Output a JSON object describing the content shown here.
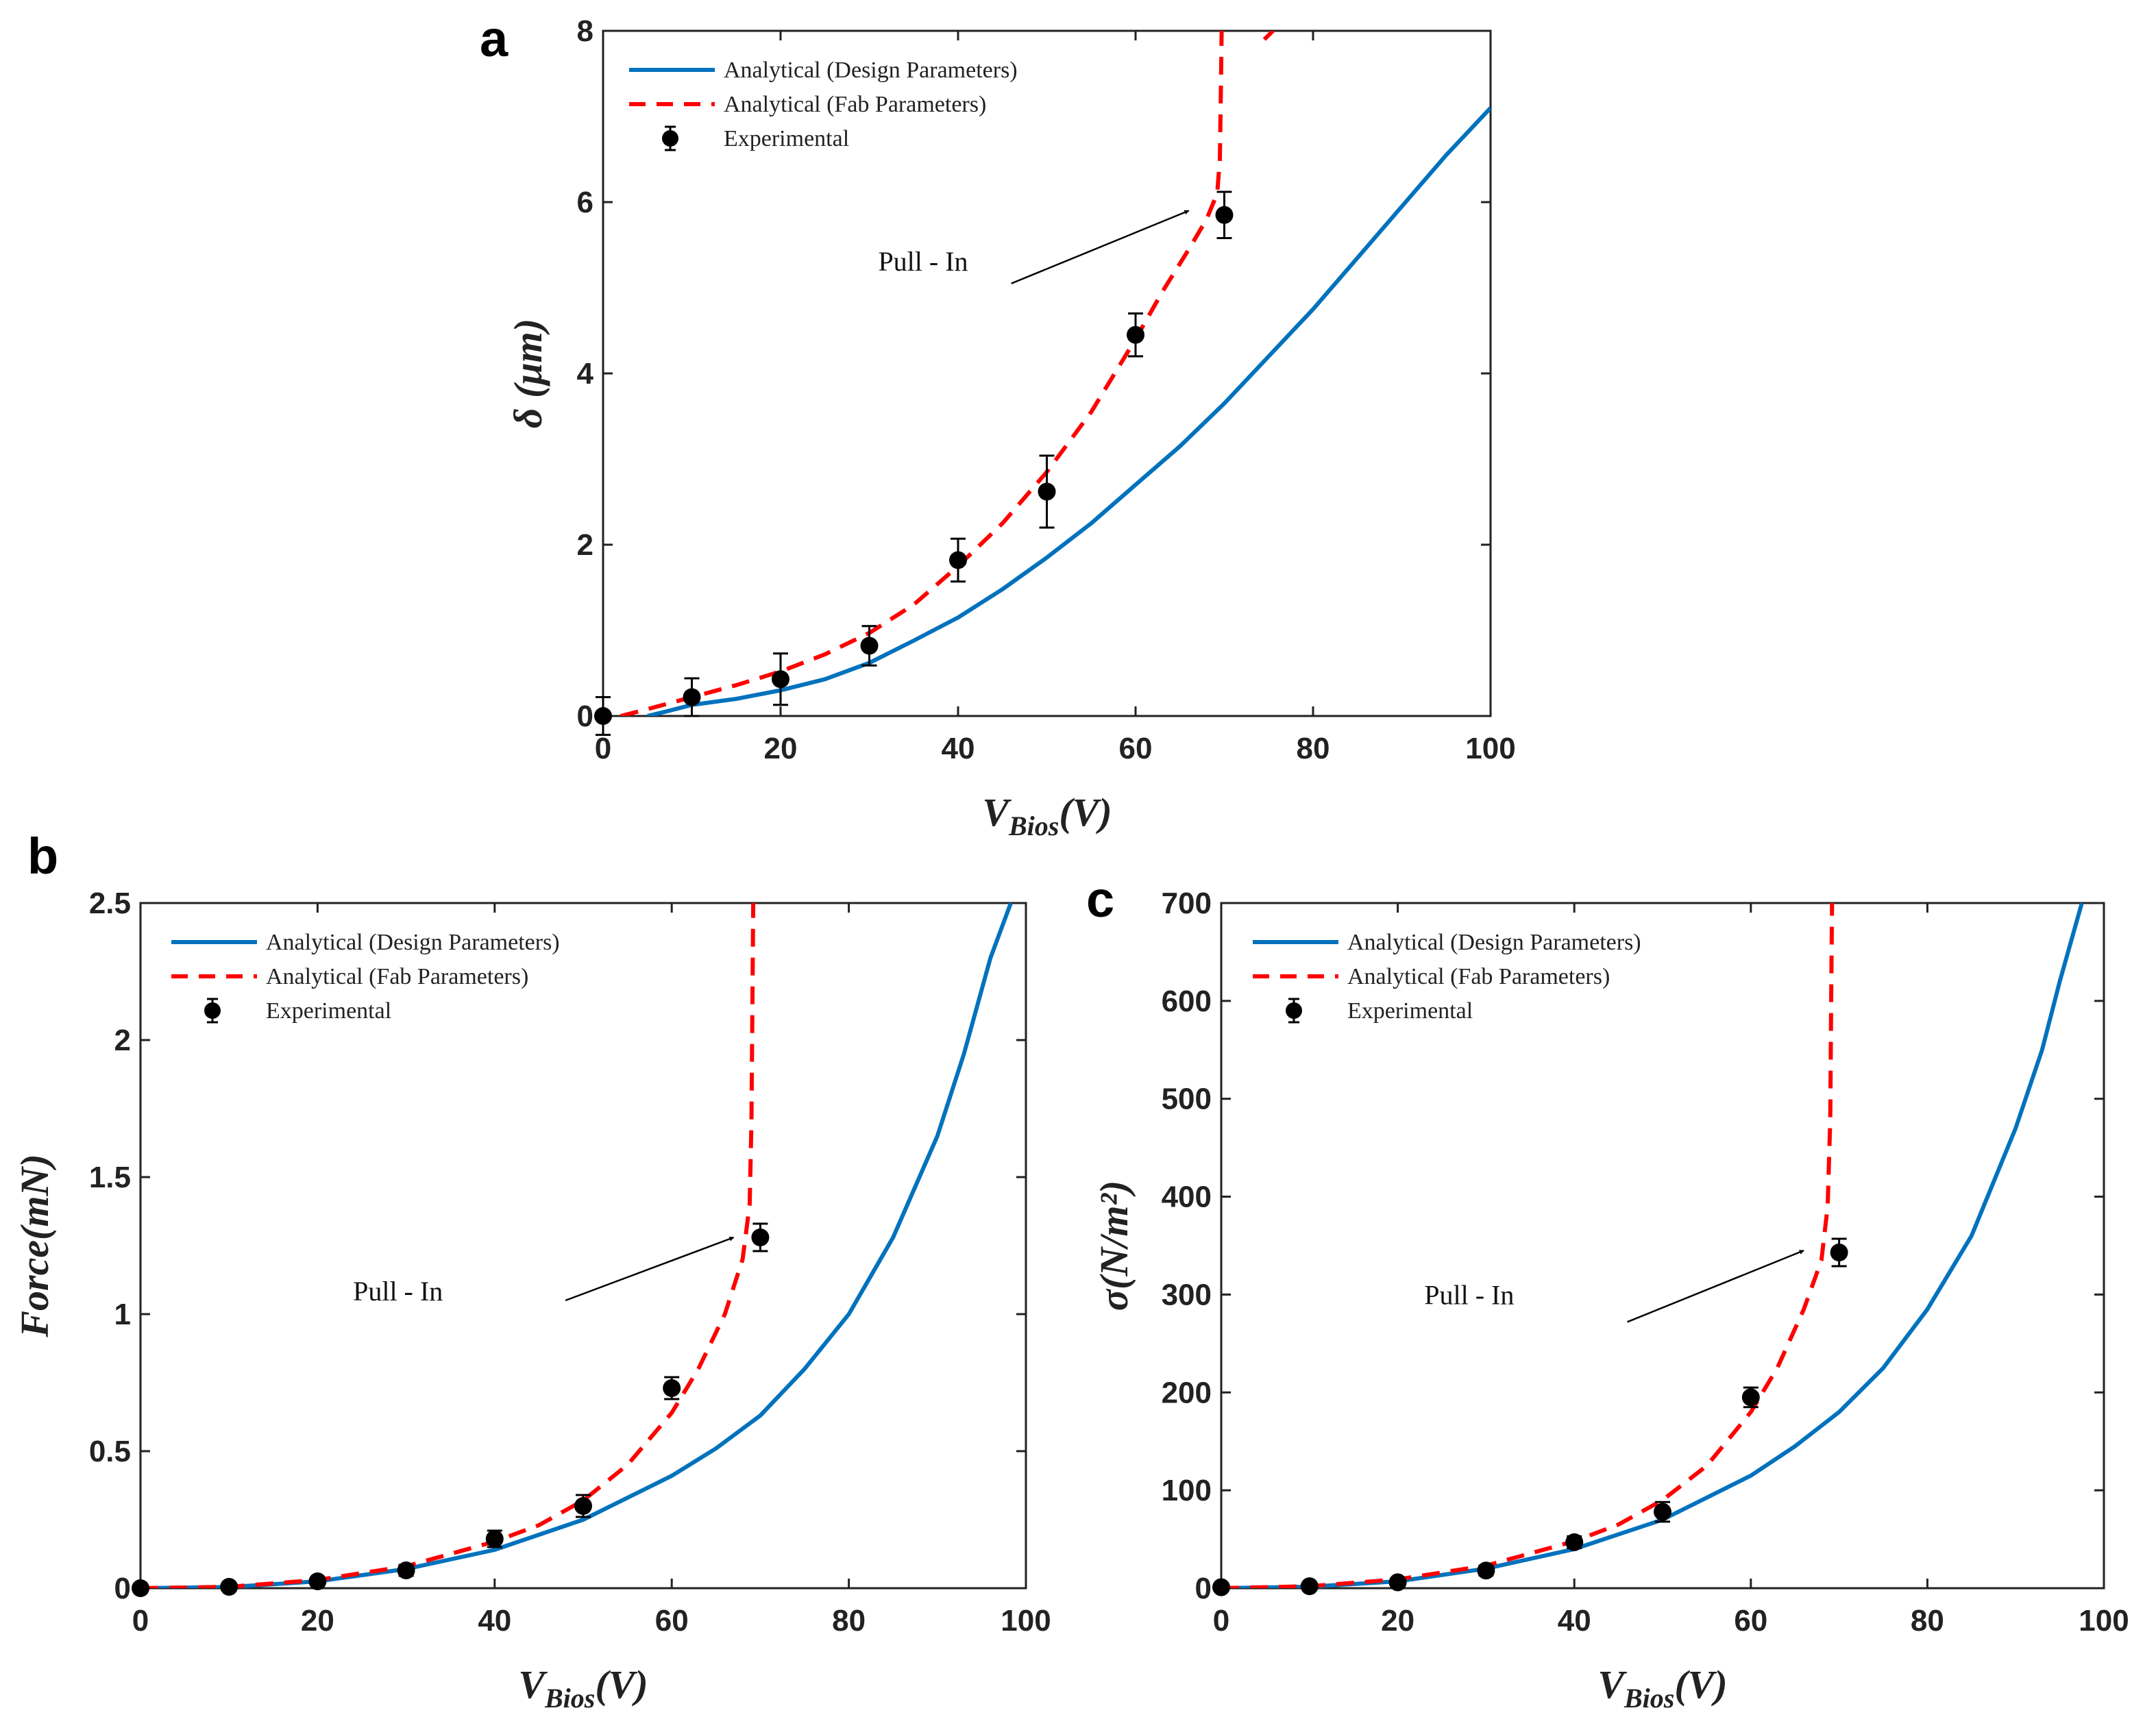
{
  "chart_data": [
    {
      "id": "a",
      "type": "line",
      "panel_letter": "a",
      "title": "",
      "xlabel": "V_Bios(V)",
      "xlabel_main": "V",
      "xlabel_sub": "Bios",
      "xlabel_tail": "(V)",
      "ylabel": "δ (μm)",
      "xlim": [
        0,
        100
      ],
      "ylim": [
        0,
        8
      ],
      "xticks": [
        0,
        20,
        40,
        60,
        80,
        100
      ],
      "xtick_labels": [
        "0",
        "20",
        "40",
        "60",
        "80",
        "100"
      ],
      "yticks": [
        0,
        2,
        4,
        6,
        8
      ],
      "ytick_labels": [
        "0",
        "2",
        "4",
        "6",
        "8"
      ],
      "grid": false,
      "legend_position": "top-left",
      "annotation": {
        "text": "Pull - In",
        "text_at": [
          31,
          5.2
        ],
        "arrow_from": [
          46,
          5.05
        ],
        "arrow_to": [
          66,
          5.9
        ]
      },
      "series": [
        {
          "name": "Analytical (Design Parameters)",
          "style": "solid",
          "color": "#0072bd",
          "x": [
            5,
            7,
            10,
            15,
            20,
            25,
            30,
            35,
            40,
            45,
            50,
            55,
            60,
            65,
            70,
            75,
            80,
            85,
            90,
            95,
            100
          ],
          "y": [
            0,
            0.05,
            0.13,
            0.2,
            0.3,
            0.43,
            0.62,
            0.88,
            1.15,
            1.48,
            1.85,
            2.25,
            2.7,
            3.15,
            3.65,
            4.2,
            4.75,
            5.35,
            5.95,
            6.55,
            7.1
          ]
        },
        {
          "name": "Analytical (Fab Parameters)",
          "style": "dashed",
          "color": "#ff0000",
          "x": [
            2,
            5,
            10,
            15,
            20,
            25,
            30,
            35,
            40,
            45,
            50,
            55,
            60,
            63,
            66,
            68,
            69.2,
            69.5,
            69.6,
            69.7
          ],
          "y": [
            0,
            0.08,
            0.22,
            0.36,
            0.52,
            0.72,
            0.97,
            1.3,
            1.75,
            2.25,
            2.85,
            3.55,
            4.4,
            4.95,
            5.45,
            5.8,
            6.1,
            6.5,
            7.2,
            8.0
          ]
        },
        {
          "name": "Analytical (Fab Parameters)",
          "style": "dashed",
          "color": "#ff0000",
          "legend": false,
          "x": [
            74.5,
            75.5
          ],
          "y": [
            7.9,
            8.0
          ]
        },
        {
          "name": "Experimental",
          "style": "marker",
          "color": "#000000",
          "x": [
            0,
            10,
            20,
            30,
            40,
            50,
            60,
            70
          ],
          "y": [
            0,
            0.22,
            0.43,
            0.82,
            1.82,
            2.62,
            4.45,
            5.85
          ],
          "err": [
            0.22,
            0.22,
            0.3,
            0.23,
            0.25,
            0.42,
            0.25,
            0.27
          ]
        }
      ]
    },
    {
      "id": "b",
      "type": "line",
      "panel_letter": "b",
      "title": "",
      "xlabel": "V_Bios(V)",
      "xlabel_main": "V",
      "xlabel_sub": "Bios",
      "xlabel_tail": "(V)",
      "ylabel": "Force(mN)",
      "xlim": [
        0,
        100
      ],
      "ylim": [
        0,
        2.5
      ],
      "xticks": [
        0,
        20,
        40,
        60,
        80,
        100
      ],
      "xtick_labels": [
        "0",
        "20",
        "40",
        "60",
        "80",
        "100"
      ],
      "yticks": [
        0,
        0.5,
        1,
        1.5,
        2,
        2.5
      ],
      "ytick_labels": [
        "0",
        "0.5",
        "1",
        "1.5",
        "2",
        "2.5"
      ],
      "grid": false,
      "legend_position": "top-left",
      "annotation": {
        "text": "Pull - In",
        "text_at": [
          24,
          1.05
        ],
        "arrow_from": [
          48,
          1.05
        ],
        "arrow_to": [
          67,
          1.28
        ]
      },
      "series": [
        {
          "name": "Analytical (Design Parameters)",
          "style": "solid",
          "color": "#0072bd",
          "x": [
            0,
            10,
            20,
            30,
            40,
            50,
            60,
            65,
            70,
            75,
            80,
            85,
            90,
            93,
            96,
            98.3
          ],
          "y": [
            0,
            0.004,
            0.025,
            0.07,
            0.14,
            0.25,
            0.41,
            0.51,
            0.63,
            0.8,
            1.0,
            1.28,
            1.65,
            1.95,
            2.3,
            2.5
          ]
        },
        {
          "name": "Analytical (Fab Parameters)",
          "style": "dashed",
          "color": "#ff0000",
          "x": [
            0,
            10,
            20,
            30,
            40,
            45,
            50,
            55,
            60,
            63,
            66,
            68,
            68.8,
            69,
            69.1,
            69.2
          ],
          "y": [
            0,
            0.005,
            0.03,
            0.08,
            0.17,
            0.23,
            0.32,
            0.45,
            0.64,
            0.8,
            1.0,
            1.2,
            1.4,
            1.7,
            2.1,
            2.5
          ]
        },
        {
          "name": "Experimental",
          "style": "marker",
          "color": "#000000",
          "x": [
            0,
            10,
            20,
            30,
            40,
            50,
            60,
            70
          ],
          "y": [
            0,
            0.005,
            0.025,
            0.065,
            0.18,
            0.3,
            0.73,
            1.28
          ],
          "err": [
            0.01,
            0.01,
            0.01,
            0.02,
            0.03,
            0.04,
            0.04,
            0.05
          ]
        }
      ]
    },
    {
      "id": "c",
      "type": "line",
      "panel_letter": "c",
      "title": "",
      "xlabel": "V_Bios(V)",
      "xlabel_main": "V",
      "xlabel_sub": "Bios",
      "xlabel_tail": "(V)",
      "ylabel": "σ(N/m²)",
      "xlim": [
        0,
        100
      ],
      "ylim": [
        0,
        700
      ],
      "xticks": [
        0,
        20,
        40,
        60,
        80,
        100
      ],
      "xtick_labels": [
        "0",
        "20",
        "40",
        "60",
        "80",
        "100"
      ],
      "yticks": [
        0,
        100,
        200,
        300,
        400,
        500,
        600,
        700
      ],
      "ytick_labels": [
        "0",
        "100",
        "200",
        "300",
        "400",
        "500",
        "600",
        "700"
      ],
      "grid": false,
      "legend_position": "top-left",
      "annotation": {
        "text": "Pull - In",
        "text_at": [
          23,
          290
        ],
        "arrow_from": [
          46,
          272
        ],
        "arrow_to": [
          66,
          345
        ]
      },
      "series": [
        {
          "name": "Analytical (Design Parameters)",
          "style": "solid",
          "color": "#0072bd",
          "x": [
            0,
            10,
            20,
            30,
            40,
            50,
            60,
            65,
            70,
            75,
            80,
            85,
            90,
            93,
            95,
            97.5
          ],
          "y": [
            0,
            1.5,
            7,
            20,
            40,
            70,
            115,
            145,
            180,
            225,
            285,
            360,
            470,
            550,
            620,
            700
          ]
        },
        {
          "name": "Analytical (Fab Parameters)",
          "style": "dashed",
          "color": "#ff0000",
          "x": [
            0,
            10,
            20,
            30,
            40,
            45,
            50,
            55,
            60,
            63,
            66,
            68,
            68.7,
            69,
            69.1,
            69.2
          ],
          "y": [
            0,
            2,
            9,
            23,
            48,
            65,
            90,
            125,
            180,
            225,
            285,
            335,
            390,
            480,
            600,
            700
          ]
        },
        {
          "name": "Experimental",
          "style": "marker",
          "color": "#000000",
          "x": [
            0,
            10,
            20,
            30,
            40,
            50,
            60,
            70
          ],
          "y": [
            1,
            2,
            6,
            18,
            47,
            78,
            195,
            343
          ],
          "err": [
            2,
            2,
            3,
            5,
            6,
            10,
            10,
            14
          ]
        }
      ]
    }
  ]
}
